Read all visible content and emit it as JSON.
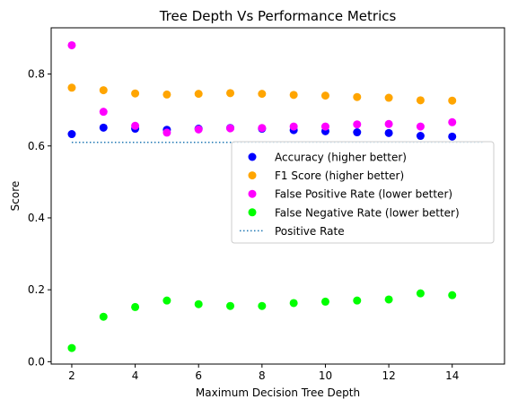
{
  "chart_data": {
    "type": "scatter",
    "title": "Tree Depth Vs Performance Metrics",
    "xlabel": "Maximum Decision Tree Depth",
    "ylabel": "Score",
    "xlim": [
      1.35,
      15.65
    ],
    "ylim": [
      -0.0066,
      0.9286
    ],
    "xticks": [
      2,
      4,
      6,
      8,
      10,
      12,
      14
    ],
    "yticks": [
      0.0,
      0.2,
      0.4,
      0.6,
      0.8
    ],
    "grid": false,
    "legend_position": "center-right",
    "x": [
      2,
      3,
      4,
      5,
      6,
      7,
      8,
      9,
      10,
      11,
      12,
      13,
      14
    ],
    "series": [
      {
        "name": "Accuracy (higher better)",
        "color": "#0000ff",
        "values": [
          0.633,
          0.651,
          0.648,
          0.645,
          0.648,
          0.65,
          0.648,
          0.644,
          0.641,
          0.638,
          0.636,
          0.628,
          0.626
        ]
      },
      {
        "name": "F1 Score (higher better)",
        "color": "#ffa500",
        "values": [
          0.762,
          0.755,
          0.746,
          0.743,
          0.745,
          0.747,
          0.745,
          0.742,
          0.74,
          0.736,
          0.734,
          0.727,
          0.726
        ]
      },
      {
        "name": "False Positive Rate (lower better)",
        "color": "#ff00ff",
        "values": [
          0.88,
          0.695,
          0.656,
          0.637,
          0.646,
          0.649,
          0.65,
          0.654,
          0.654,
          0.66,
          0.661,
          0.654,
          0.666
        ]
      },
      {
        "name": "False Negative Rate (lower better)",
        "color": "#00ff00",
        "values": [
          0.038,
          0.125,
          0.152,
          0.17,
          0.16,
          0.155,
          0.155,
          0.163,
          0.167,
          0.17,
          0.173,
          0.19,
          0.185
        ]
      }
    ],
    "reference_line": {
      "name": "Positive Rate",
      "color": "#1f77b4",
      "style": "dotted",
      "x": [
        2,
        15
      ],
      "y": 0.61
    }
  }
}
